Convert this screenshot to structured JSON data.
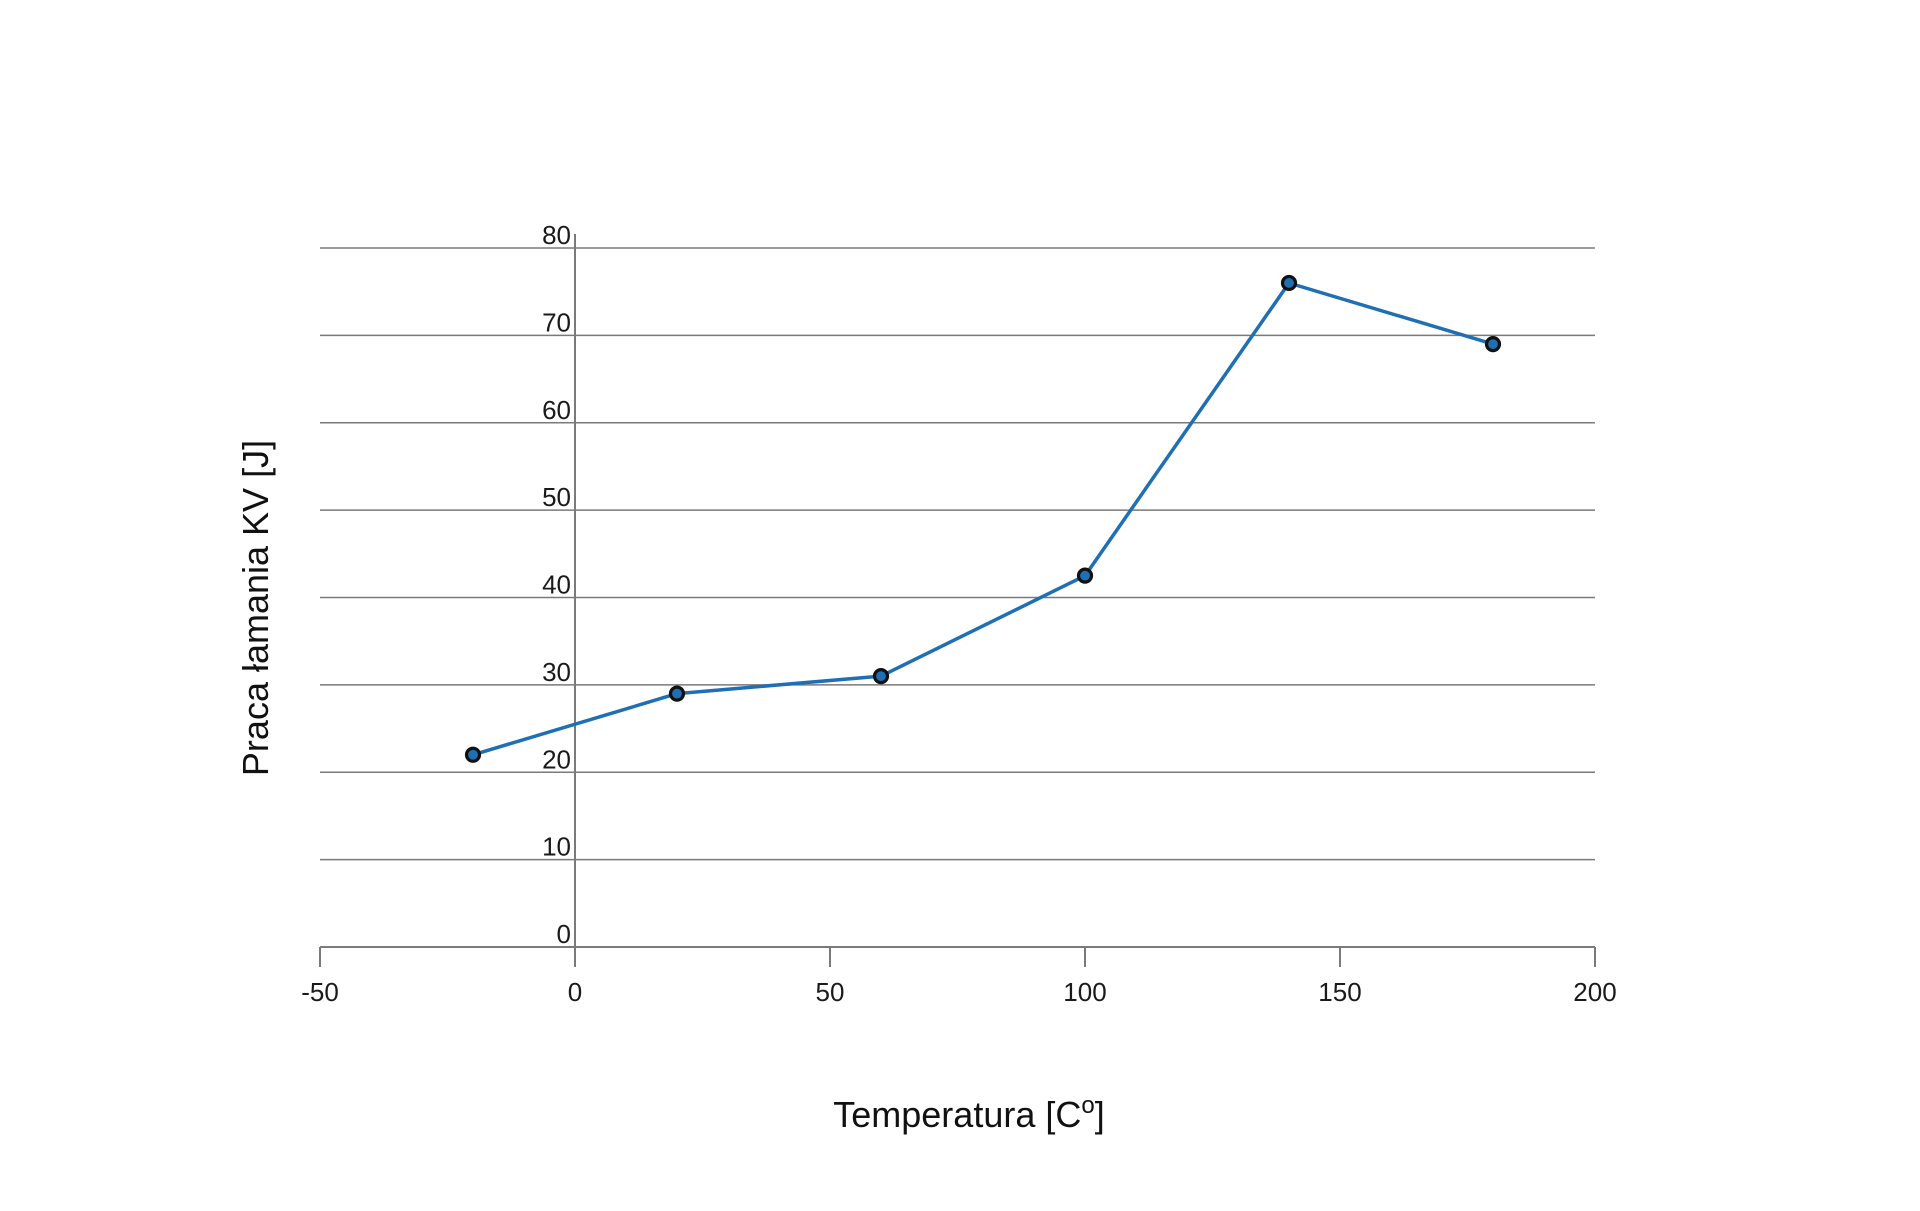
{
  "chart_data": {
    "type": "line",
    "title": "",
    "xlabel": "Temperatura [C°]",
    "xlabel_main": "Temperatura [C",
    "xlabel_degree": "o",
    "xlabel_close": "]",
    "ylabel": "Praca łamania KV [J]",
    "xlim": [
      -50,
      200
    ],
    "ylim": [
      0,
      80
    ],
    "x_ticks": [
      -50,
      0,
      50,
      100,
      150,
      200
    ],
    "x_tick_labels": [
      "-50",
      "0",
      "50",
      "100",
      "150",
      "200"
    ],
    "y_ticks": [
      0,
      10,
      20,
      30,
      40,
      50,
      60,
      70,
      80
    ],
    "y_tick_labels": [
      "0",
      "10",
      "20",
      "30",
      "40",
      "50",
      "60",
      "70",
      "80"
    ],
    "grid": true,
    "series": [
      {
        "name": "KV",
        "x": [
          -20,
          20,
          60,
          100,
          140,
          180
        ],
        "values": [
          22,
          29,
          31,
          42.5,
          76,
          69
        ]
      }
    ],
    "colors": {
      "line": "#1f6fb5",
      "marker_fill": "#1f6fb5",
      "marker_stroke": "#111111",
      "grid": "#7a7a7a"
    }
  }
}
